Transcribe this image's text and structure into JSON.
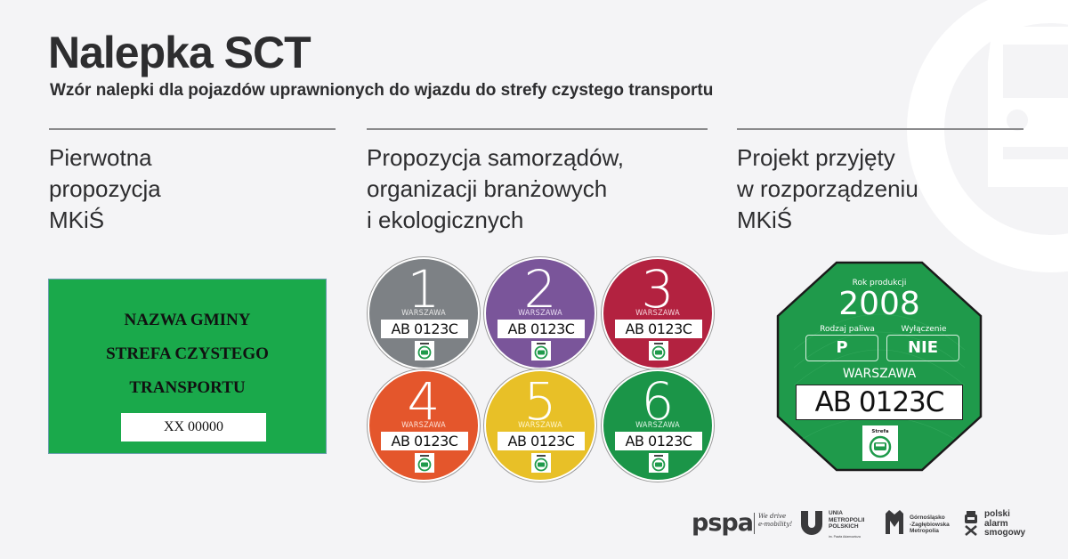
{
  "header": {
    "title": "Nalepka SCT",
    "subtitle": "Wzór nalepki dla pojazdów uprawnionych do wjazdu do strefy czystego transportu"
  },
  "background_icon": "car-in-circle-icon",
  "columns": [
    {
      "heading_lines": [
        "Pierwotna",
        "propozycja",
        "MKiŚ"
      ],
      "sticker": {
        "type": "rectangle",
        "color": "#1aa94b",
        "lines": [
          "NAZWA GMINY",
          "STREFA CZYSTEGO",
          "TRANSPORTU"
        ],
        "plate": "XX 00000"
      }
    },
    {
      "heading_lines": [
        "Propozycja samorządów,",
        "organizacji branżowych",
        "i ekologicznych"
      ],
      "stickers": [
        {
          "number": "1",
          "city": "WARSZAWA",
          "plate": "AB 0123C",
          "color": "#7d8185",
          "city_color": "#e6e6e6"
        },
        {
          "number": "2",
          "city": "WARSZAWA",
          "plate": "AB 0123C",
          "color": "#7a559a",
          "city_color": "#e8dcf2"
        },
        {
          "number": "3",
          "city": "WARSZAWA",
          "plate": "AB 0123C",
          "color": "#b32240",
          "city_color": "#f6d5dc"
        },
        {
          "number": "4",
          "city": "WARSZAWA",
          "plate": "AB 0123C",
          "color": "#e4562c",
          "city_color": "#fde0d5"
        },
        {
          "number": "5",
          "city": "WARSZAWA",
          "plate": "AB 0123C",
          "color": "#e8c027",
          "city_color": "#fff6cc"
        },
        {
          "number": "6",
          "city": "WARSZAWA",
          "plate": "AB 0123C",
          "color": "#1b9548",
          "city_color": "#dff5e6"
        }
      ],
      "badge_label": "Strefa"
    },
    {
      "heading_lines": [
        "Projekt przyjęty",
        "w rozporządzeniu",
        "MKiŚ"
      ],
      "sticker": {
        "type": "octagon",
        "color": "#1f9a4b",
        "year_label": "Rok produkcji",
        "year": "2008",
        "fuel_label": "Rodzaj paliwa",
        "fuel": "P",
        "exclusion_label": "Wyłączenie",
        "exclusion": "NIE",
        "city": "WARSZAWA",
        "plate": "AB 0123C",
        "badge_label": "Strefa"
      }
    }
  ],
  "logos": {
    "pspa": "pspa",
    "pspa_tagline": [
      "We drive",
      "e-mobility!"
    ],
    "ump": [
      "UNIA",
      "METROPOLII",
      "POLSKICH"
    ],
    "ump_sub": "im. Pawła Adamowicza",
    "gzm": [
      "Górnośląsko",
      "-Zagłębiowska",
      "Metropolia"
    ],
    "psa": [
      "polski",
      "alarm",
      "smogowy"
    ]
  }
}
